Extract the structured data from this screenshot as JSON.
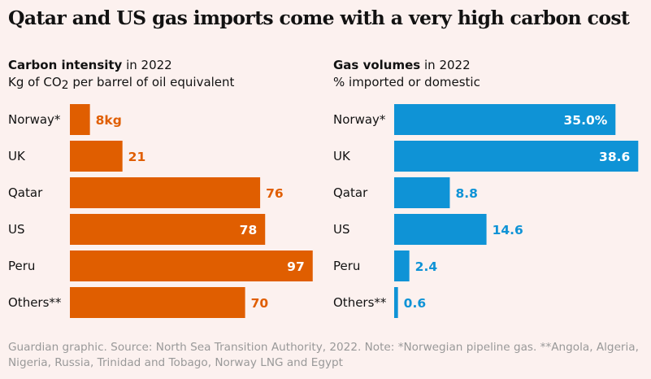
{
  "title": "Qatar and US gas imports come with a very high carbon cost",
  "chart_data": [
    {
      "type": "bar",
      "orientation": "horizontal",
      "title_bold": "Carbon intensity",
      "title_rest": " in 2022",
      "subtitle_pre": "Kg of CO",
      "subtitle_sub": "2",
      "subtitle_post": " per barrel of oil equivalent",
      "categories": [
        "Norway*",
        "UK",
        "Qatar",
        "US",
        "Peru",
        "Others**"
      ],
      "values": [
        8,
        21,
        76,
        78,
        97,
        70
      ],
      "labels": [
        "8kg",
        "21",
        "76",
        "78",
        "97",
        "70"
      ],
      "color": "#e05e00",
      "label_color": "#e05e00"
    },
    {
      "type": "bar",
      "orientation": "horizontal",
      "title_bold": "Gas volumes",
      "title_rest": " in 2022",
      "subtitle": "% imported or domestic",
      "categories": [
        "Norway*",
        "UK",
        "Qatar",
        "US",
        "Peru",
        "Others**"
      ],
      "values": [
        35.0,
        38.6,
        8.8,
        14.6,
        2.4,
        0.6
      ],
      "labels": [
        "35.0%",
        "38.6",
        "8.8",
        "14.6",
        "2.4",
        "0.6"
      ],
      "color": "#0f93d6",
      "label_color": "#0f93d6"
    }
  ],
  "footnote": "Guardian graphic. Source: North Sea Transition Authority, 2022. Note: *Norwegian pipeline gas. **Angola, Algeria, Nigeria, Russia, Trinidad and Tobago, Norway LNG and Egypt"
}
